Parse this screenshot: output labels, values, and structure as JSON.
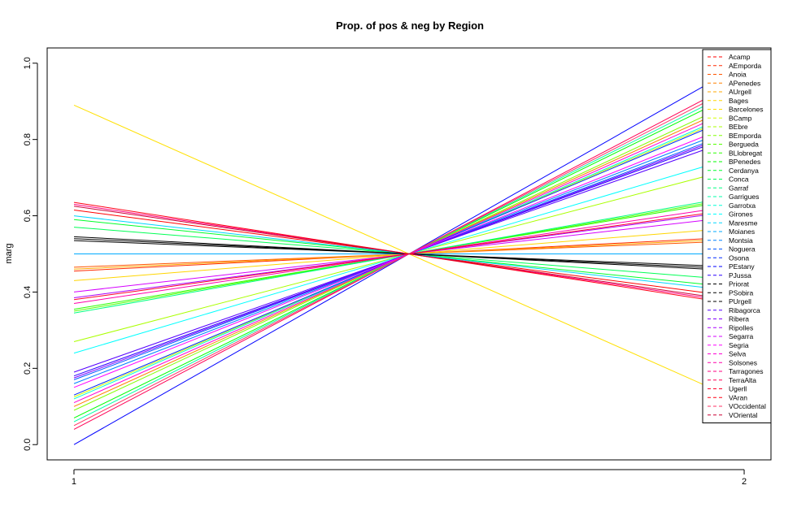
{
  "chart_data": {
    "type": "line",
    "title": "Prop. of pos & neg by Region",
    "xlabel": "",
    "ylabel": "marg",
    "x": [
      1,
      2
    ],
    "xticks": [
      "1",
      "2"
    ],
    "xlim": [
      0.96,
      2.04
    ],
    "ylim": [
      -0.04,
      1.04
    ],
    "yticks": [
      "0.0",
      "0.2",
      "0.4",
      "0.6",
      "0.8",
      "1.0"
    ],
    "grid": false,
    "legend_position": "right",
    "series": [
      {
        "name": "Acamp",
        "values": [
          0.615,
          0.385
        ],
        "color": "#FF0000"
      },
      {
        "name": "AEmporda",
        "values": [
          0.455,
          0.545
        ],
        "color": "#FF2A00"
      },
      {
        "name": "Anoia",
        "values": [
          0.465,
          0.535
        ],
        "color": "#FF5500"
      },
      {
        "name": "APenedes",
        "values": [
          0.1,
          0.9
        ],
        "color": "#FF8000"
      },
      {
        "name": "AUrgell",
        "values": [
          0.46,
          0.54
        ],
        "color": "#FFAA00"
      },
      {
        "name": "Bages",
        "values": [
          0.43,
          0.57
        ],
        "color": "#FFD500"
      },
      {
        "name": "Barcelones",
        "values": [
          0.89,
          0.11
        ],
        "color": "#FFE000"
      },
      {
        "name": "BCamp",
        "values": [
          0.125,
          0.875
        ],
        "color": "#D5FF00"
      },
      {
        "name": "BEbre",
        "values": [
          0.27,
          0.73
        ],
        "color": "#AAFF00"
      },
      {
        "name": "BEmporda",
        "values": [
          0.09,
          0.91
        ],
        "color": "#80FF00"
      },
      {
        "name": "Bergueda",
        "values": [
          0.35,
          0.65
        ],
        "color": "#55FF00"
      },
      {
        "name": "BLlobregat",
        "values": [
          0.355,
          0.645
        ],
        "color": "#2AFF00"
      },
      {
        "name": "BPenedes",
        "values": [
          0.07,
          0.93
        ],
        "color": "#00FF00"
      },
      {
        "name": "Cerdanya",
        "values": [
          0.59,
          0.41
        ],
        "color": "#00FF2A"
      },
      {
        "name": "Conca",
        "values": [
          0.57,
          0.43
        ],
        "color": "#00FF55"
      },
      {
        "name": "Garraf",
        "values": [
          0.345,
          0.655
        ],
        "color": "#00FF80"
      },
      {
        "name": "Garrigues",
        "values": [
          0.06,
          0.94
        ],
        "color": "#00FFAA"
      },
      {
        "name": "Garrotxa",
        "values": [
          0.12,
          0.88
        ],
        "color": "#00FFD5"
      },
      {
        "name": "Girones",
        "values": [
          0.24,
          0.76
        ],
        "color": "#00FFFF"
      },
      {
        "name": "Maresme",
        "values": [
          0.6,
          0.4
        ],
        "color": "#00D5FF"
      },
      {
        "name": "Moianes",
        "values": [
          0.5,
          0.5
        ],
        "color": "#00AAFF"
      },
      {
        "name": "Montsia",
        "values": [
          0.16,
          0.84
        ],
        "color": "#0080FF"
      },
      {
        "name": "Noguera",
        "values": [
          0.17,
          0.83
        ],
        "color": "#0055FF"
      },
      {
        "name": "Osona",
        "values": [
          0.13,
          0.87
        ],
        "color": "#002AFF"
      },
      {
        "name": "PEstany",
        "values": [
          0.0,
          1.0
        ],
        "color": "#0000FF"
      },
      {
        "name": "PJussa",
        "values": [
          0.18,
          0.82
        ],
        "color": "#2A00FF"
      },
      {
        "name": "Priorat",
        "values": [
          0.535,
          0.465
        ],
        "color": "#000000"
      },
      {
        "name": "PSobira",
        "values": [
          0.54,
          0.46
        ],
        "color": "#000000"
      },
      {
        "name": "PUrgell",
        "values": [
          0.545,
          0.455
        ],
        "color": "#000000"
      },
      {
        "name": "Ribagorca",
        "values": [
          0.19,
          0.81
        ],
        "color": "#5500FF"
      },
      {
        "name": "Ribera",
        "values": [
          0.175,
          0.825
        ],
        "color": "#8000FF"
      },
      {
        "name": "Ripolles",
        "values": [
          0.385,
          0.615
        ],
        "color": "#AA00FF"
      },
      {
        "name": "Segarra",
        "values": [
          0.4,
          0.6
        ],
        "color": "#D500FF"
      },
      {
        "name": "Segria",
        "values": [
          0.15,
          0.85
        ],
        "color": "#FF00FF"
      },
      {
        "name": "Selva",
        "values": [
          0.11,
          0.89
        ],
        "color": "#FF00D5"
      },
      {
        "name": "Solsones",
        "values": [
          0.37,
          0.63
        ],
        "color": "#FF00AA"
      },
      {
        "name": "Tarragones",
        "values": [
          0.63,
          0.37
        ],
        "color": "#FF0080"
      },
      {
        "name": "TerraAlta",
        "values": [
          0.04,
          0.96
        ],
        "color": "#FF0055"
      },
      {
        "name": "Ugerll",
        "values": [
          0.38,
          0.62
        ],
        "color": "#FF002A"
      },
      {
        "name": "VAran",
        "values": [
          0.635,
          0.365
        ],
        "color": "#FF0015"
      },
      {
        "name": "VOccidental",
        "values": [
          0.05,
          0.95
        ],
        "color": "#FF3366"
      },
      {
        "name": "VOriental",
        "values": [
          0.625,
          0.375
        ],
        "color": "#CC0033"
      }
    ]
  }
}
